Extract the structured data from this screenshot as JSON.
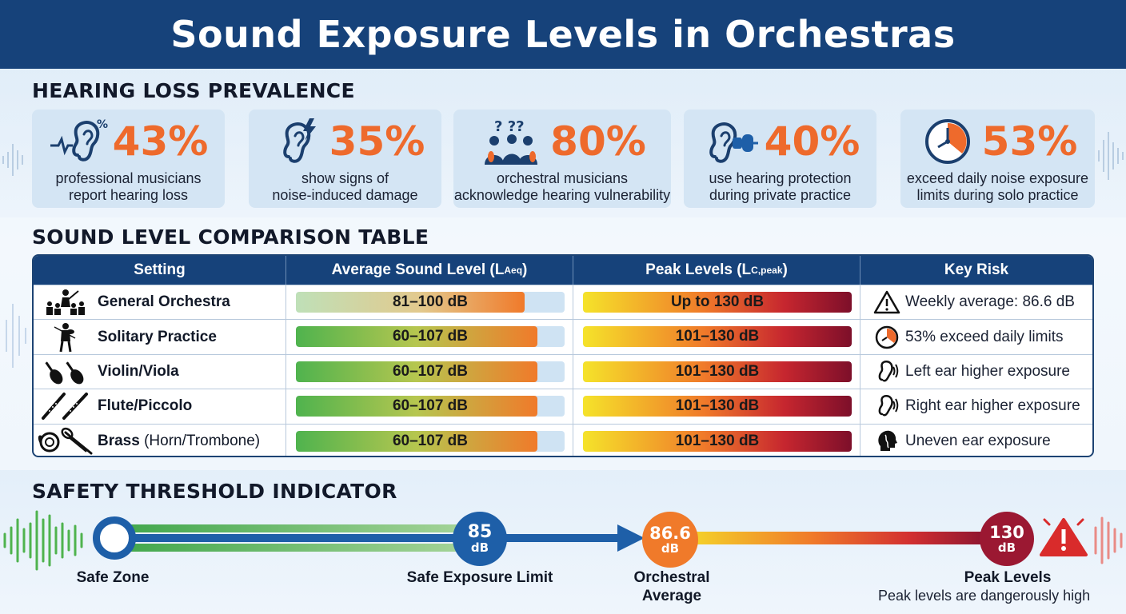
{
  "title": "Sound Exposure Levels in Orchestras",
  "prevalence": {
    "heading": "HEARING LOSS PREVALENCE",
    "cards": [
      {
        "value": "43%",
        "description": "professional musicians\nreport hearing loss",
        "icon": "ear-soundwave-percent-icon",
        "icon_label": "%"
      },
      {
        "value": "35%",
        "description": "show signs of\nnoise-induced damage",
        "icon": "ear-lightning-icon"
      },
      {
        "value": "80%",
        "description": "orchestral musicians\nacknowledge hearing vulnerability",
        "icon": "musicians-question-icon",
        "icon_label": "? ??"
      },
      {
        "value": "40%",
        "description": "use hearing protection\nduring private practice",
        "icon": "ear-plug-icon"
      },
      {
        "value": "53%",
        "description": "exceed daily noise exposure\nlimits during solo practice",
        "icon": "clock-icon"
      }
    ]
  },
  "comparison": {
    "heading": "SOUND LEVEL COMPARISON TABLE",
    "columns": {
      "setting": "Setting",
      "average_main": "Average Sound Level (L",
      "average_sub": "Aeq",
      "average_close": ")",
      "peak_main": "Peak Levels (L",
      "peak_sub": "C,peak",
      "peak_close": ")",
      "risk": "Key Risk"
    },
    "rows": [
      {
        "setting": "General Orchestra",
        "setting_extra": "",
        "icon": "conductor-orchestra-icon",
        "average": "81–100 dB",
        "average_fill": 0.85,
        "peak": "Up to 130 dB",
        "peak_fill": 1.0,
        "risk": "Weekly average: 86.6 dB",
        "risk_icon": "warning-triangle-icon"
      },
      {
        "setting": "Solitary Practice",
        "setting_extra": "",
        "icon": "violinist-icon",
        "average": "60–107 dB",
        "average_fill": 0.9,
        "peak": "101–130 dB",
        "peak_fill": 1.0,
        "risk": "53% exceed daily limits",
        "risk_icon": "clock-icon"
      },
      {
        "setting": "Violin/Viola",
        "setting_extra": "",
        "icon": "violins-icon",
        "average": "60–107 dB",
        "average_fill": 0.9,
        "peak": "101–130 dB",
        "peak_fill": 1.0,
        "risk": "Left ear higher exposure",
        "risk_icon": "ear-sound-icon"
      },
      {
        "setting": "Flute/Piccolo",
        "setting_extra": "",
        "icon": "flutes-icon",
        "average": "60–107 dB",
        "average_fill": 0.9,
        "peak": "101–130 dB",
        "peak_fill": 1.0,
        "risk": "Right ear higher exposure",
        "risk_icon": "ear-sound-icon"
      },
      {
        "setting": "Brass",
        "setting_extra": " (Horn/Trombone)",
        "icon": "horn-trombone-icon",
        "average": "60–107 dB",
        "average_fill": 0.9,
        "peak": "101–130 dB",
        "peak_fill": 1.0,
        "risk": "Uneven ear exposure",
        "risk_icon": "head-profile-icon"
      }
    ]
  },
  "threshold": {
    "heading": "SAFETY THRESHOLD INDICATOR",
    "points": [
      {
        "label": "Safe Zone",
        "value": "",
        "unit": ""
      },
      {
        "label": "Safe Exposure Limit",
        "value": "85",
        "unit": "dB"
      },
      {
        "label": "Orchestral\nAverage",
        "value": "86.6",
        "unit": "dB"
      },
      {
        "label": "Peak Levels",
        "value": "130",
        "unit": "dB"
      }
    ],
    "note": "Peak levels are dangerously high",
    "warning_icon": "warning-triangle-icon"
  },
  "colors": {
    "header": "#16427a",
    "accent": "#ee6a2c",
    "safe": "#4fb34e",
    "limit": "#1e5fa8",
    "average": "#f07a2a",
    "peak": "#9b1832"
  }
}
